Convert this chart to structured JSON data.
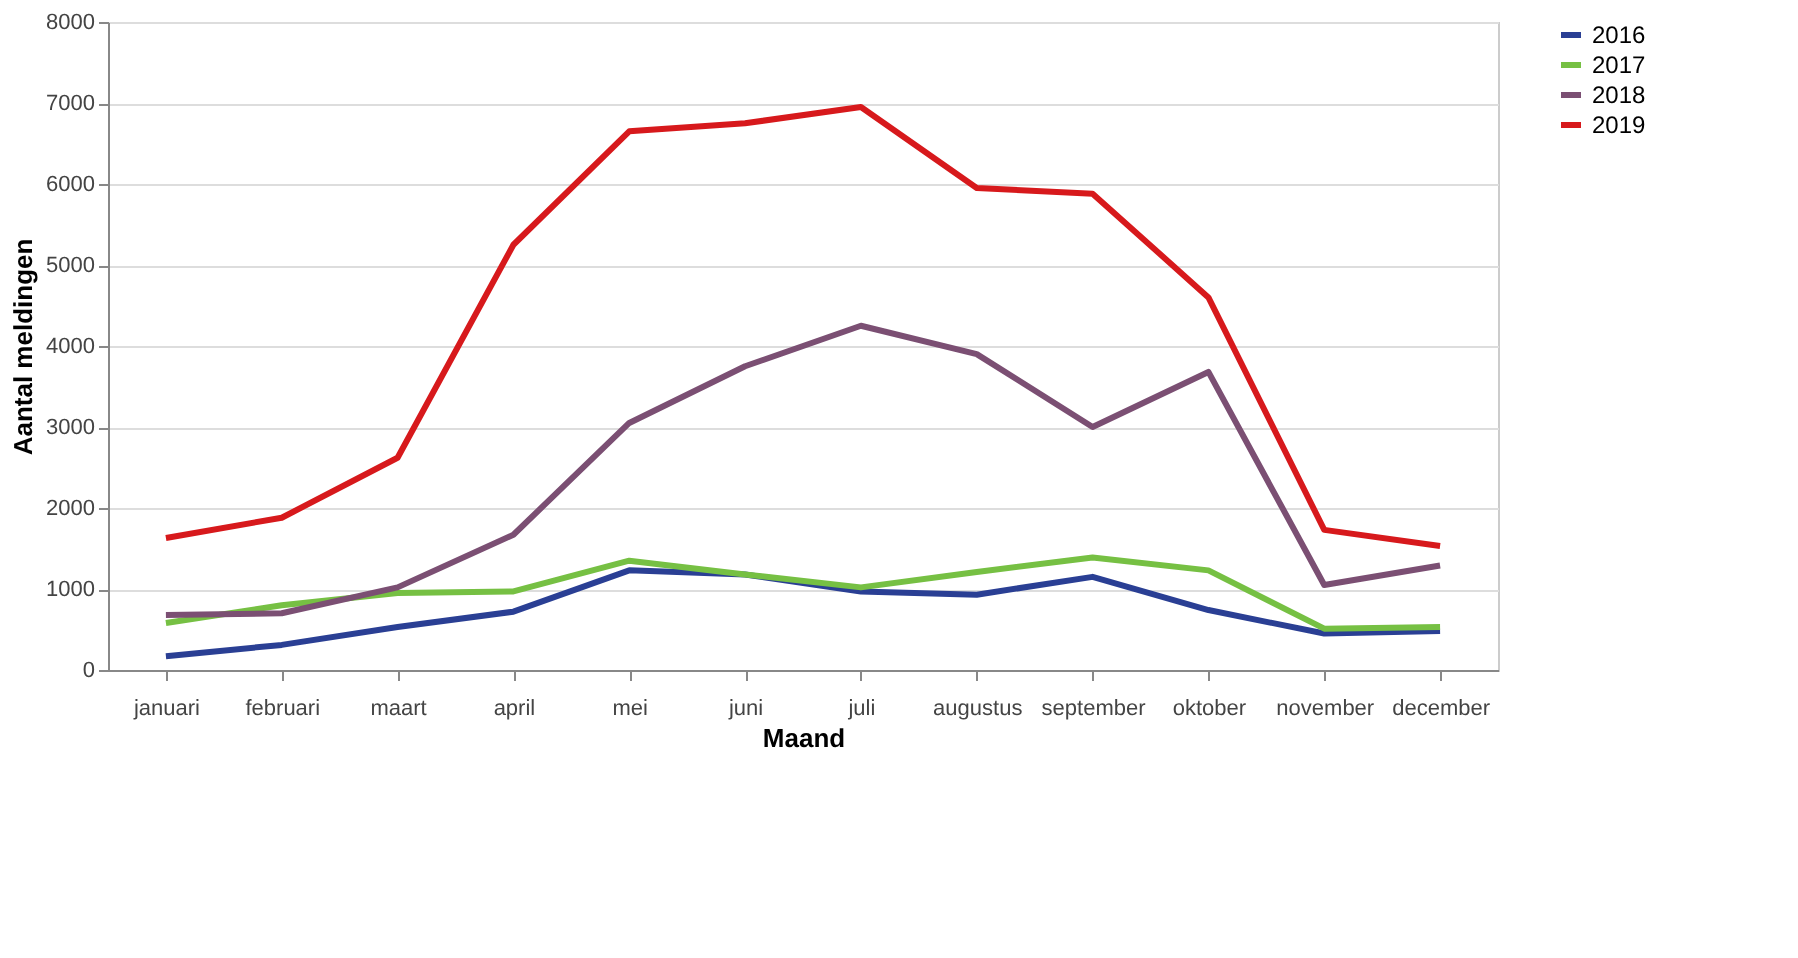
{
  "chart_data": {
    "type": "line",
    "xlabel": "Maand",
    "ylabel": "Aantal meldingen",
    "categories": [
      "januari",
      "februari",
      "maart",
      "april",
      "mei",
      "juni",
      "juli",
      "augustus",
      "september",
      "oktober",
      "november",
      "december"
    ],
    "series": [
      {
        "name": "2016",
        "color": "#2a3f94",
        "values": [
          170,
          310,
          530,
          720,
          1230,
          1180,
          970,
          930,
          1150,
          740,
          450,
          480
        ]
      },
      {
        "name": "2017",
        "color": "#76c043",
        "values": [
          580,
          800,
          950,
          970,
          1350,
          1180,
          1020,
          1210,
          1390,
          1230,
          510,
          530
        ]
      },
      {
        "name": "2018",
        "color": "#7b4f73",
        "values": [
          680,
          700,
          1020,
          1670,
          3050,
          3750,
          4250,
          3900,
          3000,
          3680,
          1050,
          1290
        ]
      },
      {
        "name": "2019",
        "color": "#d7191c",
        "values": [
          1630,
          1880,
          2620,
          5250,
          6650,
          6750,
          6950,
          5950,
          5880,
          4600,
          1730,
          1530
        ]
      }
    ],
    "ylim": [
      0,
      8000
    ],
    "yticks": [
      0,
      1000,
      2000,
      3000,
      4000,
      5000,
      6000,
      7000,
      8000
    ],
    "grid": "y",
    "legend": "right",
    "marker": "none",
    "line_style": "solid"
  }
}
